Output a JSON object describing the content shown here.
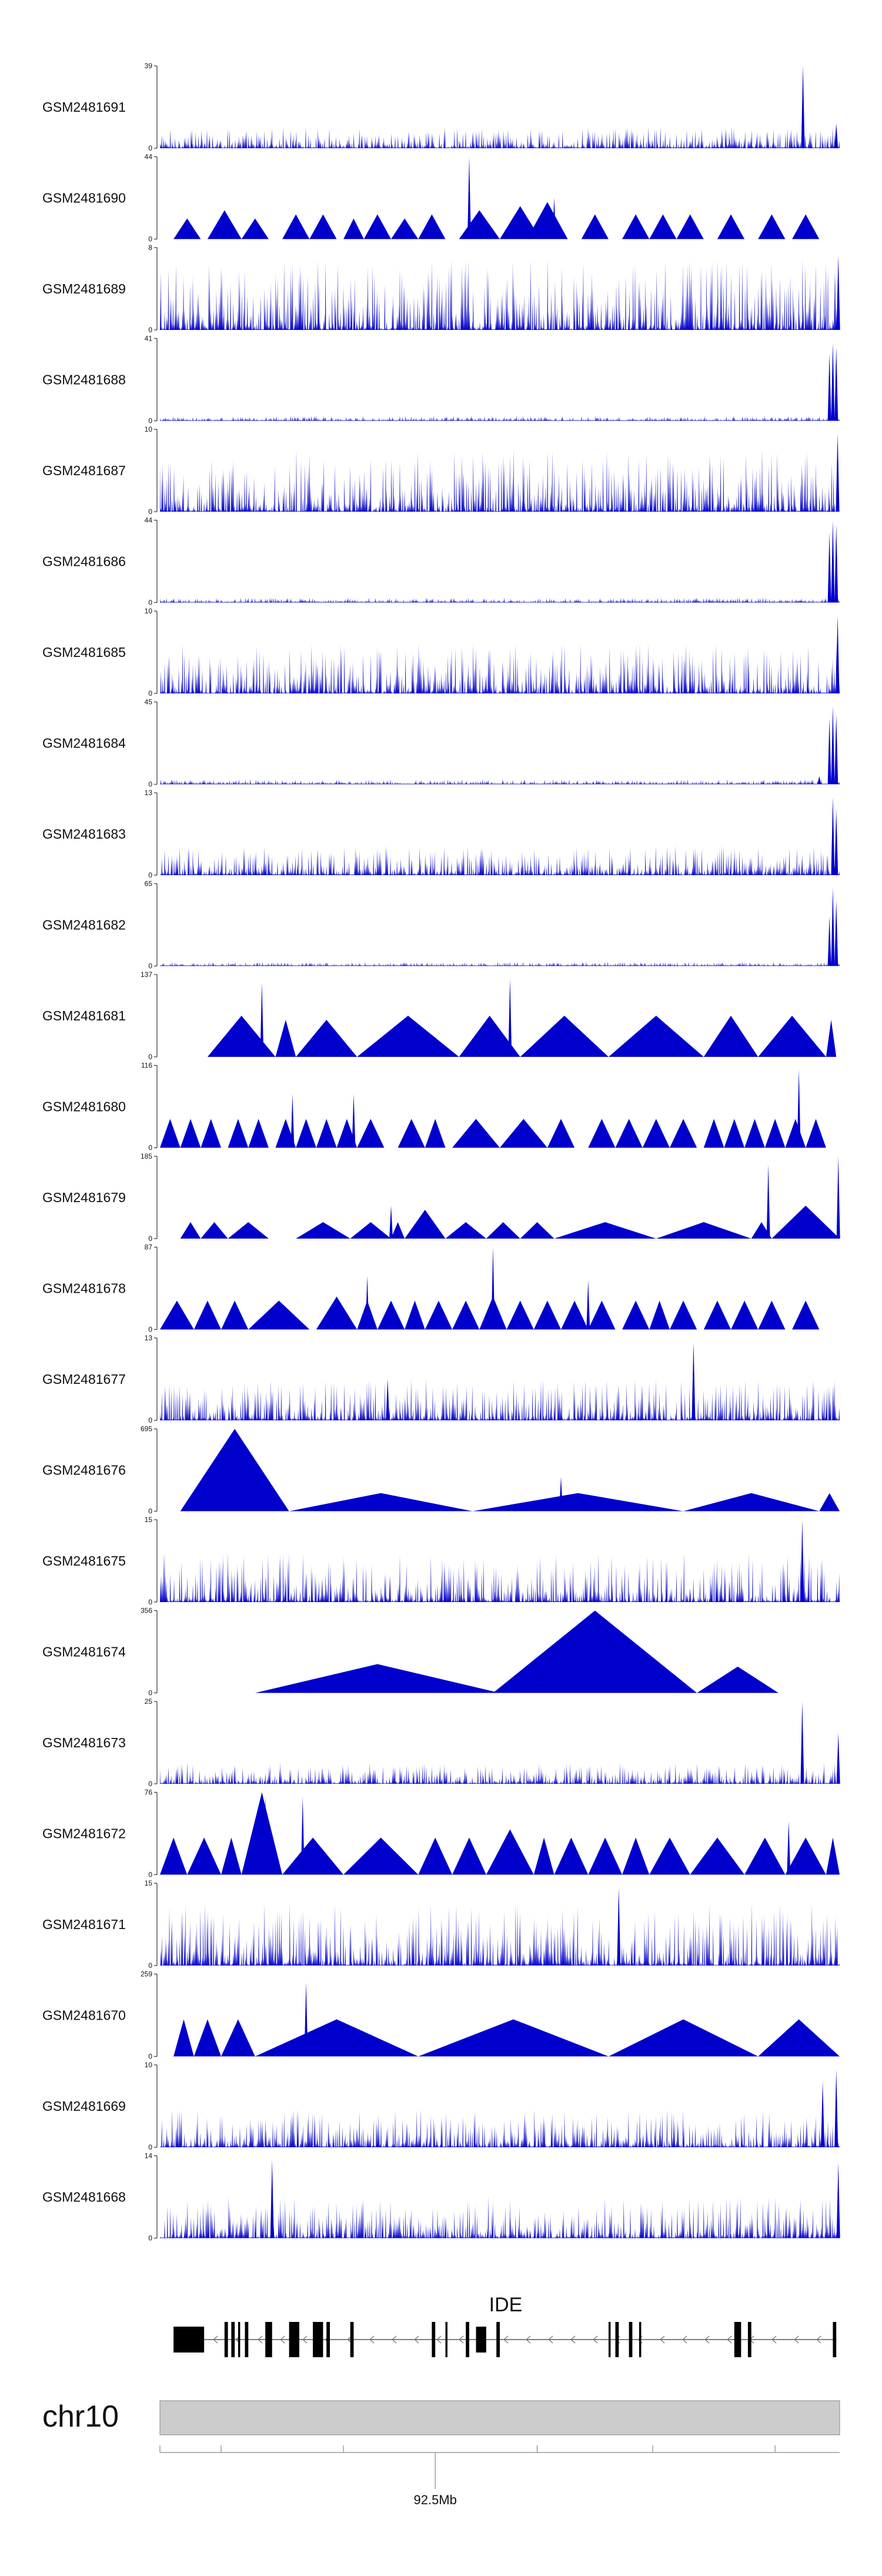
{
  "chart_data": {
    "type": "area",
    "title": "",
    "track_color": "#0000cc",
    "tracks": [
      {
        "name": "GSM2481691",
        "ymax": 39,
        "ymin": 0,
        "style": "noise",
        "spike_scale": 0.25,
        "peaks": [
          {
            "pos": 0.946,
            "h": 1.0
          },
          {
            "pos": 0.995,
            "h": 0.3
          }
        ]
      },
      {
        "name": "GSM2481690",
        "ymax": 44,
        "ymin": 0,
        "style": "triangles",
        "spans": [
          [
            0.02,
            0.06,
            0.25
          ],
          [
            0.07,
            0.12,
            0.35
          ],
          [
            0.12,
            0.16,
            0.25
          ],
          [
            0.18,
            0.22,
            0.3
          ],
          [
            0.22,
            0.26,
            0.3
          ],
          [
            0.27,
            0.3,
            0.25
          ],
          [
            0.3,
            0.34,
            0.3
          ],
          [
            0.34,
            0.38,
            0.25
          ],
          [
            0.38,
            0.42,
            0.3
          ],
          [
            0.44,
            0.5,
            0.35
          ],
          [
            0.5,
            0.56,
            0.4
          ],
          [
            0.54,
            0.6,
            0.45
          ],
          [
            0.62,
            0.66,
            0.3
          ],
          [
            0.68,
            0.72,
            0.3
          ],
          [
            0.72,
            0.76,
            0.3
          ],
          [
            0.76,
            0.8,
            0.3
          ],
          [
            0.82,
            0.86,
            0.3
          ],
          [
            0.88,
            0.92,
            0.3
          ],
          [
            0.93,
            0.97,
            0.3
          ]
        ],
        "peaks": [
          {
            "pos": 0.455,
            "h": 1.0
          },
          {
            "pos": 0.57,
            "h": 0.45
          },
          {
            "pos": 0.58,
            "h": 0.5
          }
        ]
      },
      {
        "name": "GSM2481689",
        "ymax": 8,
        "ymin": 0,
        "style": "noise",
        "spike_scale": 0.85,
        "peaks": [
          {
            "pos": 0.998,
            "h": 0.9
          }
        ]
      },
      {
        "name": "GSM2481688",
        "ymax": 41,
        "ymin": 0,
        "style": "noise",
        "spike_scale": 0.05,
        "peaks": [
          {
            "pos": 0.985,
            "h": 0.82
          },
          {
            "pos": 0.99,
            "h": 0.95
          },
          {
            "pos": 0.995,
            "h": 0.9
          }
        ]
      },
      {
        "name": "GSM2481687",
        "ymax": 10,
        "ymin": 0,
        "style": "noise",
        "spike_scale": 0.75,
        "peaks": [
          {
            "pos": 0.997,
            "h": 0.95
          }
        ]
      },
      {
        "name": "GSM2481686",
        "ymax": 44,
        "ymin": 0,
        "style": "noise",
        "spike_scale": 0.05,
        "peaks": [
          {
            "pos": 0.985,
            "h": 0.85
          },
          {
            "pos": 0.99,
            "h": 1.0
          },
          {
            "pos": 0.995,
            "h": 0.95
          }
        ]
      },
      {
        "name": "GSM2481685",
        "ymax": 10,
        "ymin": 0,
        "style": "noise",
        "spike_scale": 0.6,
        "peaks": [
          {
            "pos": 0.997,
            "h": 0.95
          }
        ]
      },
      {
        "name": "GSM2481684",
        "ymax": 45,
        "ymin": 0,
        "style": "noise",
        "spike_scale": 0.05,
        "peaks": [
          {
            "pos": 0.97,
            "h": 0.1
          },
          {
            "pos": 0.985,
            "h": 0.8
          },
          {
            "pos": 0.99,
            "h": 0.95
          },
          {
            "pos": 0.995,
            "h": 0.85
          }
        ]
      },
      {
        "name": "GSM2481683",
        "ymax": 13,
        "ymin": 0,
        "style": "noise",
        "spike_scale": 0.35,
        "peaks": [
          {
            "pos": 0.99,
            "h": 0.95
          },
          {
            "pos": 0.995,
            "h": 0.8
          }
        ]
      },
      {
        "name": "GSM2481682",
        "ymax": 65,
        "ymin": 0,
        "style": "noise",
        "spike_scale": 0.04,
        "peaks": [
          {
            "pos": 0.985,
            "h": 0.6
          },
          {
            "pos": 0.99,
            "h": 0.95
          },
          {
            "pos": 0.995,
            "h": 0.8
          }
        ]
      },
      {
        "name": "GSM2481681",
        "ymax": 137,
        "ymin": 0,
        "style": "triangles",
        "spans": [
          [
            0.07,
            0.17,
            0.5
          ],
          [
            0.17,
            0.2,
            0.45
          ],
          [
            0.2,
            0.29,
            0.45
          ],
          [
            0.29,
            0.44,
            0.5
          ],
          [
            0.44,
            0.53,
            0.5
          ],
          [
            0.53,
            0.66,
            0.5
          ],
          [
            0.66,
            0.8,
            0.5
          ],
          [
            0.8,
            0.88,
            0.5
          ],
          [
            0.88,
            0.98,
            0.5
          ],
          [
            0.98,
            0.995,
            0.45
          ]
        ],
        "peaks": [
          {
            "pos": 0.15,
            "h": 0.9
          },
          {
            "pos": 0.515,
            "h": 0.95
          }
        ]
      },
      {
        "name": "GSM2481680",
        "ymax": 116,
        "ymin": 0,
        "style": "triangles",
        "spans": [
          [
            0.0,
            0.03,
            0.35
          ],
          [
            0.03,
            0.06,
            0.35
          ],
          [
            0.06,
            0.09,
            0.35
          ],
          [
            0.1,
            0.13,
            0.35
          ],
          [
            0.13,
            0.16,
            0.35
          ],
          [
            0.17,
            0.2,
            0.35
          ],
          [
            0.2,
            0.23,
            0.35
          ],
          [
            0.23,
            0.26,
            0.35
          ],
          [
            0.26,
            0.29,
            0.35
          ],
          [
            0.29,
            0.33,
            0.35
          ],
          [
            0.35,
            0.39,
            0.35
          ],
          [
            0.39,
            0.42,
            0.35
          ],
          [
            0.43,
            0.5,
            0.35
          ],
          [
            0.5,
            0.57,
            0.35
          ],
          [
            0.57,
            0.61,
            0.35
          ],
          [
            0.63,
            0.67,
            0.35
          ],
          [
            0.67,
            0.71,
            0.35
          ],
          [
            0.71,
            0.75,
            0.35
          ],
          [
            0.75,
            0.79,
            0.35
          ],
          [
            0.8,
            0.83,
            0.35
          ],
          [
            0.83,
            0.86,
            0.35
          ],
          [
            0.86,
            0.89,
            0.35
          ],
          [
            0.89,
            0.92,
            0.35
          ],
          [
            0.92,
            0.95,
            0.35
          ],
          [
            0.95,
            0.98,
            0.35
          ]
        ],
        "peaks": [
          {
            "pos": 0.195,
            "h": 0.65
          },
          {
            "pos": 0.285,
            "h": 0.65
          },
          {
            "pos": 0.94,
            "h": 0.95
          }
        ]
      },
      {
        "name": "GSM2481679",
        "ymax": 185,
        "ymin": 0,
        "style": "triangles",
        "spans": [
          [
            0.03,
            0.06,
            0.2
          ],
          [
            0.06,
            0.1,
            0.2
          ],
          [
            0.1,
            0.16,
            0.2
          ],
          [
            0.2,
            0.28,
            0.2
          ],
          [
            0.28,
            0.34,
            0.2
          ],
          [
            0.34,
            0.36,
            0.2
          ],
          [
            0.36,
            0.42,
            0.35
          ],
          [
            0.42,
            0.48,
            0.2
          ],
          [
            0.48,
            0.53,
            0.2
          ],
          [
            0.53,
            0.58,
            0.2
          ],
          [
            0.58,
            0.73,
            0.2
          ],
          [
            0.73,
            0.87,
            0.2
          ],
          [
            0.87,
            0.9,
            0.2
          ],
          [
            0.9,
            1.0,
            0.4
          ]
        ],
        "peaks": [
          {
            "pos": 0.34,
            "h": 0.4
          },
          {
            "pos": 0.895,
            "h": 0.9
          },
          {
            "pos": 0.998,
            "h": 1.0
          }
        ]
      },
      {
        "name": "GSM2481678",
        "ymax": 87,
        "ymin": 0,
        "style": "triangles",
        "spans": [
          [
            0.0,
            0.05,
            0.35
          ],
          [
            0.05,
            0.09,
            0.35
          ],
          [
            0.09,
            0.13,
            0.35
          ],
          [
            0.13,
            0.22,
            0.35
          ],
          [
            0.23,
            0.29,
            0.4
          ],
          [
            0.29,
            0.32,
            0.35
          ],
          [
            0.32,
            0.36,
            0.35
          ],
          [
            0.36,
            0.39,
            0.35
          ],
          [
            0.39,
            0.43,
            0.35
          ],
          [
            0.43,
            0.47,
            0.35
          ],
          [
            0.47,
            0.51,
            0.4
          ],
          [
            0.51,
            0.55,
            0.35
          ],
          [
            0.55,
            0.59,
            0.35
          ],
          [
            0.59,
            0.63,
            0.35
          ],
          [
            0.63,
            0.67,
            0.35
          ],
          [
            0.68,
            0.72,
            0.35
          ],
          [
            0.72,
            0.75,
            0.35
          ],
          [
            0.75,
            0.79,
            0.35
          ],
          [
            0.8,
            0.84,
            0.35
          ],
          [
            0.84,
            0.88,
            0.35
          ],
          [
            0.88,
            0.92,
            0.35
          ],
          [
            0.93,
            0.97,
            0.35
          ]
        ],
        "peaks": [
          {
            "pos": 0.305,
            "h": 0.65
          },
          {
            "pos": 0.49,
            "h": 1.0
          },
          {
            "pos": 0.63,
            "h": 0.6
          }
        ]
      },
      {
        "name": "GSM2481677",
        "ymax": 13,
        "ymin": 0,
        "style": "noise",
        "spike_scale": 0.5,
        "peaks": [
          {
            "pos": 0.785,
            "h": 0.95
          },
          {
            "pos": 0.335,
            "h": 0.5
          }
        ]
      },
      {
        "name": "GSM2481676",
        "ymax": 695,
        "ymin": 0,
        "style": "triangles",
        "spans": [
          [
            0.03,
            0.19,
            1.0
          ],
          [
            0.19,
            0.46,
            0.22
          ],
          [
            0.46,
            0.77,
            0.22
          ],
          [
            0.77,
            0.97,
            0.22
          ],
          [
            0.97,
            1.0,
            0.22
          ]
        ],
        "peaks": [
          {
            "pos": 0.59,
            "h": 0.42
          }
        ]
      },
      {
        "name": "GSM2481675",
        "ymax": 15,
        "ymin": 0,
        "style": "noise",
        "spike_scale": 0.6,
        "peaks": [
          {
            "pos": 0.945,
            "h": 1.0
          }
        ]
      },
      {
        "name": "GSM2481674",
        "ymax": 356,
        "ymin": 0,
        "style": "triangles",
        "spans": [
          [
            0.14,
            0.5,
            0.35
          ],
          [
            0.49,
            0.79,
            1.0
          ],
          [
            0.79,
            0.91,
            0.32
          ]
        ],
        "peaks": []
      },
      {
        "name": "GSM2481673",
        "ymax": 25,
        "ymin": 0,
        "style": "noise",
        "spike_scale": 0.25,
        "peaks": [
          {
            "pos": 0.945,
            "h": 1.0
          },
          {
            "pos": 0.998,
            "h": 0.62
          }
        ]
      },
      {
        "name": "GSM2481672",
        "ymax": 76,
        "ymin": 0,
        "style": "triangles",
        "spans": [
          [
            0.0,
            0.04,
            0.45
          ],
          [
            0.04,
            0.09,
            0.45
          ],
          [
            0.09,
            0.12,
            0.45
          ],
          [
            0.12,
            0.18,
            1.0
          ],
          [
            0.18,
            0.27,
            0.45
          ],
          [
            0.27,
            0.38,
            0.45
          ],
          [
            0.38,
            0.43,
            0.45
          ],
          [
            0.43,
            0.48,
            0.45
          ],
          [
            0.48,
            0.55,
            0.55
          ],
          [
            0.55,
            0.58,
            0.45
          ],
          [
            0.58,
            0.63,
            0.45
          ],
          [
            0.63,
            0.68,
            0.45
          ],
          [
            0.68,
            0.72,
            0.45
          ],
          [
            0.72,
            0.78,
            0.45
          ],
          [
            0.78,
            0.86,
            0.45
          ],
          [
            0.86,
            0.92,
            0.45
          ],
          [
            0.92,
            0.98,
            0.45
          ],
          [
            0.98,
            1.0,
            0.45
          ]
        ],
        "peaks": [
          {
            "pos": 0.155,
            "h": 0.95
          },
          {
            "pos": 0.21,
            "h": 0.95
          },
          {
            "pos": 0.925,
            "h": 0.65
          }
        ]
      },
      {
        "name": "GSM2481671",
        "ymax": 15,
        "ymin": 0,
        "style": "noise",
        "spike_scale": 0.75,
        "peaks": [
          {
            "pos": 0.675,
            "h": 0.95
          }
        ]
      },
      {
        "name": "GSM2481670",
        "ymax": 259,
        "ymin": 0,
        "style": "triangles",
        "spans": [
          [
            0.02,
            0.05,
            0.45
          ],
          [
            0.05,
            0.09,
            0.45
          ],
          [
            0.09,
            0.14,
            0.45
          ],
          [
            0.14,
            0.38,
            0.45
          ],
          [
            0.38,
            0.66,
            0.45
          ],
          [
            0.66,
            0.88,
            0.45
          ],
          [
            0.88,
            1.0,
            0.45
          ]
        ],
        "peaks": [
          {
            "pos": 0.215,
            "h": 0.9
          }
        ]
      },
      {
        "name": "GSM2481669",
        "ymax": 10,
        "ymin": 0,
        "style": "noise",
        "spike_scale": 0.45,
        "peaks": [
          {
            "pos": 0.995,
            "h": 0.95
          },
          {
            "pos": 0.975,
            "h": 0.8
          }
        ]
      },
      {
        "name": "GSM2481668",
        "ymax": 14,
        "ymin": 0,
        "style": "noise",
        "spike_scale": 0.5,
        "peaks": [
          {
            "pos": 0.165,
            "h": 0.95
          },
          {
            "pos": 0.998,
            "h": 0.92
          }
        ]
      }
    ],
    "gene": {
      "name": "IDE",
      "strand": "-",
      "start_frac": 0.02,
      "end_frac": 0.995,
      "exons": [
        [
          0.02,
          0.065,
          "utr"
        ],
        [
          0.095,
          0.1
        ],
        [
          0.105,
          0.11
        ],
        [
          0.115,
          0.118
        ],
        [
          0.125,
          0.13
        ],
        [
          0.155,
          0.165
        ],
        [
          0.19,
          0.205
        ],
        [
          0.225,
          0.24
        ],
        [
          0.245,
          0.25
        ],
        [
          0.28,
          0.285
        ],
        [
          0.4,
          0.405
        ],
        [
          0.42,
          0.423
        ],
        [
          0.45,
          0.455
        ],
        [
          0.465,
          0.48,
          "utr"
        ],
        [
          0.495,
          0.5
        ],
        [
          0.66,
          0.663
        ],
        [
          0.67,
          0.675
        ],
        [
          0.69,
          0.695
        ],
        [
          0.705,
          0.708
        ],
        [
          0.845,
          0.855
        ],
        [
          0.865,
          0.87
        ],
        [
          0.99,
          0.995
        ]
      ]
    },
    "chrom": {
      "name": "chr10",
      "tick_label": "92.5Mb",
      "tick_fracs": [
        0.0,
        0.09,
        0.27,
        0.405,
        0.555,
        0.725,
        0.905
      ],
      "labeled_tick_index": 3
    }
  }
}
